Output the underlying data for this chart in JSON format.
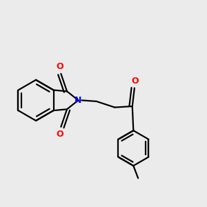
{
  "background_color": "#ebebeb",
  "bond_color": "#000000",
  "nitrogen_color": "#0000ff",
  "oxygen_color": "#ff0000",
  "line_width": 1.6,
  "figsize": [
    3.0,
    3.0
  ],
  "dpi": 100,
  "atoms": {
    "N_label": "N",
    "O1_label": "O",
    "O2_label": "O",
    "O3_label": "O"
  }
}
